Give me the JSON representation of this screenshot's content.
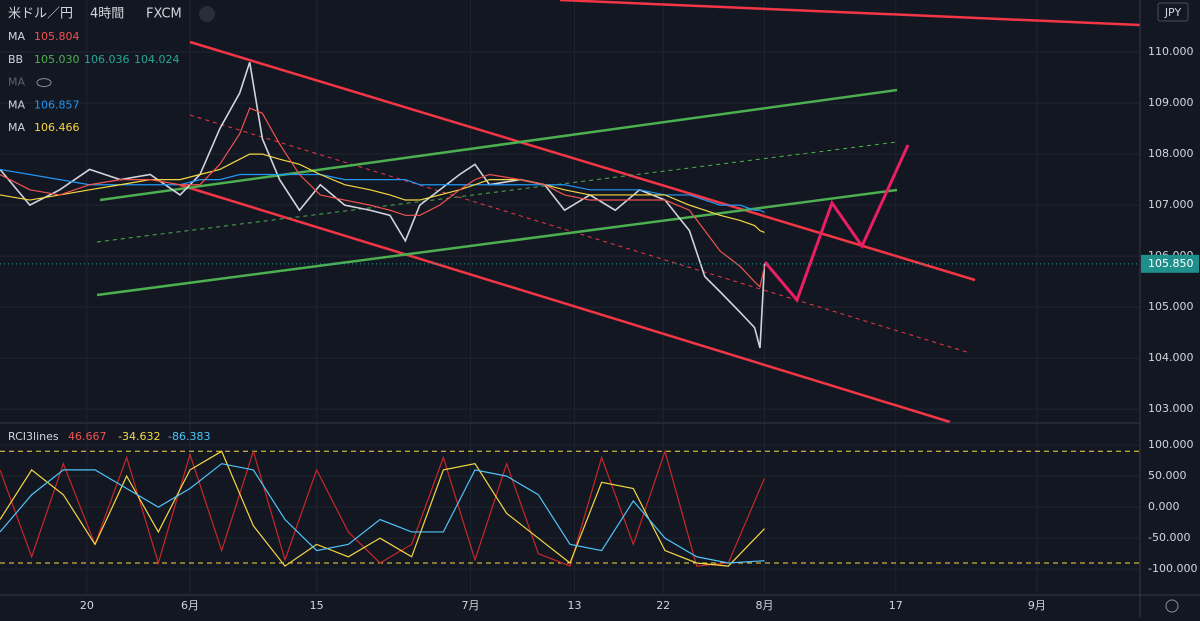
{
  "header": {
    "symbol": "米ドル／円",
    "interval": "4時間",
    "source": "FXCM",
    "currency": "JPY"
  },
  "chart_data": [
    {
      "type": "line",
      "legend_items": [
        {
          "name": "MA",
          "values": [
            "105.804"
          ],
          "color": "#ef5350"
        },
        {
          "name": "BB",
          "values": [
            "105.030",
            "106.036",
            "104.024"
          ],
          "color": "#4caf50"
        },
        {
          "name": "MA",
          "values": [],
          "color": "#6b6f7a"
        },
        {
          "name": "MA",
          "values": [
            "106.857"
          ],
          "color": "#2196f3"
        },
        {
          "name": "MA",
          "values": [
            "106.466"
          ],
          "color": "#f5d742"
        }
      ],
      "x": [
        0,
        3.3,
        6.6,
        9.9,
        13.3,
        16.6,
        19.9,
        22.1,
        24.3,
        26.5,
        27.6,
        29,
        30.9,
        33.1,
        35.4,
        38.1,
        40.9,
        43.1,
        44.8,
        46.4,
        48.6,
        50.8,
        52.5,
        54.1,
        57.5,
        60.2,
        62.4,
        65.2,
        68,
        70.7,
        73.5,
        76.2,
        77.9,
        79.6,
        81.8,
        83.4,
        84,
        84.5
      ],
      "xlim": [
        0,
        126
      ],
      "series": [
        {
          "color": "#d1d4dc",
          "values": [
            107.7,
            107.0,
            107.3,
            107.7,
            107.5,
            107.6,
            107.2,
            107.6,
            108.5,
            109.2,
            109.8,
            108.3,
            107.5,
            106.9,
            107.4,
            107.0,
            106.9,
            106.8,
            106.3,
            107.0,
            107.3,
            107.6,
            107.8,
            107.4,
            107.5,
            107.4,
            106.9,
            107.2,
            106.9,
            107.3,
            107.1,
            106.5,
            105.6,
            105.3,
            104.9,
            104.6,
            104.2,
            105.85
          ]
        },
        {
          "color": "#2196f3",
          "values": [
            107.7,
            107.6,
            107.5,
            107.4,
            107.4,
            107.4,
            107.4,
            107.5,
            107.5,
            107.6,
            107.6,
            107.6,
            107.6,
            107.6,
            107.6,
            107.5,
            107.5,
            107.5,
            107.5,
            107.4,
            107.4,
            107.4,
            107.4,
            107.4,
            107.4,
            107.4,
            107.4,
            107.3,
            107.3,
            107.3,
            107.2,
            107.2,
            107.1,
            107.0,
            107.0,
            106.9,
            106.9,
            106.857
          ]
        },
        {
          "color": "#f5d742",
          "values": [
            107.2,
            107.1,
            107.2,
            107.3,
            107.4,
            107.5,
            107.5,
            107.6,
            107.7,
            107.9,
            108.0,
            108.0,
            107.9,
            107.8,
            107.6,
            107.4,
            107.3,
            107.2,
            107.1,
            107.1,
            107.2,
            107.3,
            107.4,
            107.5,
            107.5,
            107.4,
            107.3,
            107.2,
            107.2,
            107.2,
            107.2,
            107.0,
            106.9,
            106.8,
            106.7,
            106.6,
            106.5,
            106.466
          ]
        },
        {
          "color": "#ef5350",
          "values": [
            107.6,
            107.3,
            107.2,
            107.4,
            107.5,
            107.5,
            107.4,
            107.4,
            107.8,
            108.4,
            108.9,
            108.8,
            108.2,
            107.6,
            107.2,
            107.1,
            107.0,
            106.9,
            106.8,
            106.8,
            107.0,
            107.3,
            107.5,
            107.6,
            107.5,
            107.4,
            107.2,
            107.1,
            107.1,
            107.1,
            107.1,
            106.9,
            106.5,
            106.1,
            105.8,
            105.5,
            105.4,
            105.804
          ]
        }
      ],
      "ylim": [
        102.75,
        111.02
      ],
      "yticks": [
        {
          "value": 103,
          "label": "103.000"
        },
        {
          "value": 104,
          "label": "104.000"
        },
        {
          "value": 105,
          "label": "105.000"
        },
        {
          "value": 106,
          "label": "106.000"
        },
        {
          "value": 107,
          "label": "107.000"
        },
        {
          "value": 108,
          "label": "108.000"
        },
        {
          "value": 109,
          "label": "109.000"
        },
        {
          "value": 110,
          "label": "110.000"
        }
      ],
      "last_value": {
        "value": 105.85,
        "label": "105.850"
      },
      "grid": true
    },
    {
      "type": "line",
      "title": "RCI3lines",
      "legend_values": [
        {
          "text": "46.667",
          "color": "#ef5350"
        },
        {
          "text": "-34.632",
          "color": "#f5d742"
        },
        {
          "text": "-86.383",
          "color": "#4fc3f7"
        }
      ],
      "x": [
        0,
        3.5,
        7,
        10.5,
        14,
        17.5,
        21,
        24.5,
        28,
        31.5,
        35,
        38.5,
        42,
        45.5,
        49,
        52.5,
        56,
        59.5,
        63,
        66.5,
        70,
        73.5,
        77,
        80.5,
        84.5
      ],
      "xlim": [
        0,
        126
      ],
      "xticks": [
        {
          "value": 9.6,
          "label": "20"
        },
        {
          "value": 21,
          "label": "6月"
        },
        {
          "value": 35,
          "label": "15"
        },
        {
          "value": 52,
          "label": "7月"
        },
        {
          "value": 63.5,
          "label": "13"
        },
        {
          "value": 73.3,
          "label": "22"
        },
        {
          "value": 84.5,
          "label": "8月"
        },
        {
          "value": 99,
          "label": "17"
        },
        {
          "value": 114.6,
          "label": "9月"
        }
      ],
      "series": [
        {
          "color": "#c62828",
          "values": [
            60,
            -80,
            70,
            -60,
            80,
            -90,
            85,
            -70,
            90,
            -85,
            60,
            -40,
            -90,
            -60,
            80,
            -85,
            70,
            -75,
            -95,
            80,
            -60,
            90,
            -95,
            -90,
            46.667
          ]
        },
        {
          "color": "#f5d742",
          "values": [
            -20,
            60,
            20,
            -60,
            50,
            -40,
            60,
            90,
            -30,
            -95,
            -60,
            -80,
            -50,
            -80,
            60,
            70,
            -10,
            -50,
            -90,
            40,
            30,
            -70,
            -90,
            -95,
            -34.632
          ]
        },
        {
          "color": "#4fc3f7",
          "values": [
            -40,
            20,
            60,
            60,
            30,
            0,
            30,
            70,
            60,
            -20,
            -70,
            -60,
            -20,
            -40,
            -40,
            60,
            50,
            20,
            -60,
            -70,
            10,
            -50,
            -80,
            -90,
            -86.383
          ]
        }
      ],
      "ylim": [
        -140,
        134
      ],
      "yticks": [
        {
          "value": 100,
          "label": "100.000"
        },
        {
          "value": 50,
          "label": "50.000"
        },
        {
          "value": 0,
          "label": "0.000"
        },
        {
          "value": -50,
          "label": "-50.000"
        },
        {
          "value": -100,
          "label": "-100.000"
        }
      ],
      "hlines": [
        90,
        -90
      ],
      "grid": true
    }
  ]
}
